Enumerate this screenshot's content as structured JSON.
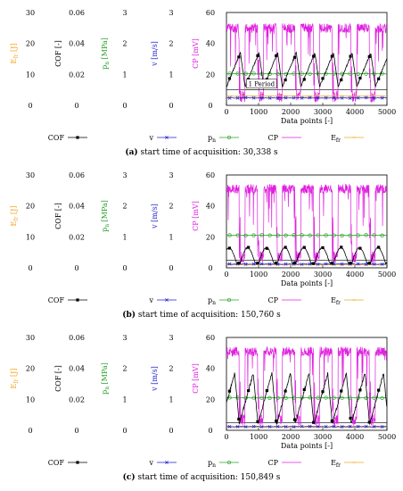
{
  "chart_data": [
    {
      "type": "line",
      "panel_tag": "a",
      "caption": "start time of acquisition: 30,338 s",
      "xlabel": "Data points [-]",
      "xlim": [
        0,
        5000
      ],
      "x_ticks": [
        "0",
        "1000",
        "2000",
        "3000",
        "4000",
        "5000"
      ],
      "annotation": "1 Period",
      "axes": [
        {
          "name": "E_fr",
          "label": "E",
          "label_sub": "fr",
          "label_unit": " [J]",
          "color": "#f5a623",
          "ticks": [
            "30",
            "20",
            "10",
            "0"
          ],
          "ylim": [
            0,
            30
          ]
        },
        {
          "name": "COF",
          "label": "COF [-]",
          "label_sub": "",
          "label_unit": "",
          "color": "#000000",
          "ticks": [
            "0.06",
            "0.04",
            "0.02",
            "0"
          ],
          "ylim": [
            0,
            0.06
          ]
        },
        {
          "name": "p_n",
          "label": "p",
          "label_sub": "n",
          "label_unit": " [MPa]",
          "color": "#2ca02c",
          "ticks": [
            "3",
            "2",
            "1",
            "0"
          ],
          "ylim": [
            0,
            3
          ]
        },
        {
          "name": "v",
          "label": "v [m/s]",
          "label_sub": "",
          "label_unit": "",
          "color": "#1f1fcf",
          "ticks": [
            "3",
            "2",
            "1",
            "0"
          ],
          "ylim": [
            0,
            3
          ]
        },
        {
          "name": "CP",
          "label": "CP [mV]",
          "label_sub": "",
          "label_unit": "",
          "color": "#e020e0",
          "ticks": [
            "60",
            "40",
            "20",
            "0"
          ],
          "ylim": [
            0,
            60
          ]
        }
      ],
      "series": [
        {
          "name": "COF",
          "color": "#000000",
          "marker": "filled-square",
          "shape": "sawtooth",
          "low": 0.012,
          "high": 0.034,
          "period": 580,
          "phase": 0
        },
        {
          "name": "v",
          "color": "#1f1fcf",
          "marker": "x",
          "shape": "flat",
          "value": 0.24
        },
        {
          "name": "p_n",
          "color": "#2ca02c",
          "marker": "open-circle",
          "shape": "flat",
          "value": 1.02
        },
        {
          "name": "CP",
          "color": "#e020e0",
          "marker": "none",
          "shape": "square-noisy",
          "low": 2,
          "high": 53,
          "period": 580,
          "phase": 0
        },
        {
          "name": "E_fr",
          "color": "#f5a623",
          "marker": "dash",
          "shape": "flat",
          "value": 3.0
        }
      ],
      "reference_lines": [
        {
          "axis": "CP",
          "value": 10
        }
      ]
    },
    {
      "type": "line",
      "panel_tag": "b",
      "caption": "start time of acquisition: 150,760 s",
      "xlabel": "Data points [-]",
      "xlim": [
        0,
        5000
      ],
      "x_ticks": [
        "0",
        "1000",
        "2000",
        "3000",
        "4000",
        "5000"
      ],
      "axes": [
        {
          "name": "E_fr",
          "label": "E",
          "label_sub": "fr",
          "label_unit": " [J]",
          "color": "#f5a623",
          "ticks": [
            "30",
            "20",
            "10",
            "0"
          ],
          "ylim": [
            0,
            30
          ]
        },
        {
          "name": "COF",
          "label": "COF [-]",
          "label_sub": "",
          "label_unit": "",
          "color": "#000000",
          "ticks": [
            "0.06",
            "0.04",
            "0.02",
            "0"
          ],
          "ylim": [
            0,
            0.06
          ]
        },
        {
          "name": "p_n",
          "label": "p",
          "label_sub": "n",
          "label_unit": " [MPa]",
          "color": "#2ca02c",
          "ticks": [
            "3",
            "2",
            "1",
            "0"
          ],
          "ylim": [
            0,
            3
          ]
        },
        {
          "name": "v",
          "label": "v [m/s]",
          "label_sub": "",
          "label_unit": "",
          "color": "#1f1fcf",
          "ticks": [
            "3",
            "2",
            "1",
            "0"
          ],
          "ylim": [
            0,
            3
          ]
        },
        {
          "name": "CP",
          "label": "CP [mV]",
          "label_sub": "",
          "label_unit": "",
          "color": "#e020e0",
          "ticks": [
            "60",
            "40",
            "20",
            "0"
          ],
          "ylim": [
            0,
            60
          ]
        }
      ],
      "series": [
        {
          "name": "COF",
          "color": "#000000",
          "marker": "filled-square",
          "shape": "hump",
          "low": 0.003,
          "high": 0.013,
          "period": 580,
          "phase": 150
        },
        {
          "name": "v",
          "color": "#1f1fcf",
          "marker": "x",
          "shape": "flat",
          "value": 0.12
        },
        {
          "name": "p_n",
          "color": "#2ca02c",
          "marker": "open-circle",
          "shape": "flat",
          "value": 1.05
        },
        {
          "name": "CP",
          "color": "#e020e0",
          "marker": "none",
          "shape": "square-noisy",
          "low": 3,
          "high": 54,
          "period": 580,
          "phase": 0
        },
        {
          "name": "E_fr",
          "color": "#f5a623",
          "marker": "dash",
          "shape": "flat",
          "value": 1.0
        }
      ],
      "reference_lines": [
        {
          "axis": "CP",
          "value": 5
        }
      ]
    },
    {
      "type": "line",
      "panel_tag": "c",
      "caption": "start time of acquisition: 150,849 s",
      "xlabel": "Data points [-]",
      "xlim": [
        0,
        5000
      ],
      "x_ticks": [
        "0",
        "1000",
        "2000",
        "3000",
        "4000",
        "5000"
      ],
      "axes": [
        {
          "name": "E_fr",
          "label": "E",
          "label_sub": "fr",
          "label_unit": " [J]",
          "color": "#f5a623",
          "ticks": [
            "30",
            "20",
            "10",
            "0"
          ],
          "ylim": [
            0,
            30
          ]
        },
        {
          "name": "COF",
          "label": "COF [-]",
          "label_sub": "",
          "label_unit": "",
          "color": "#000000",
          "ticks": [
            "0.06",
            "0.04",
            "0.02",
            "0"
          ],
          "ylim": [
            0,
            0.06
          ]
        },
        {
          "name": "p_n",
          "label": "p",
          "label_sub": "n",
          "label_unit": " [MPa]",
          "color": "#2ca02c",
          "ticks": [
            "3",
            "2",
            "1",
            "0"
          ],
          "ylim": [
            0,
            3
          ]
        },
        {
          "name": "v",
          "label": "v [m/s]",
          "label_sub": "",
          "label_unit": "",
          "color": "#1f1fcf",
          "ticks": [
            "3",
            "2",
            "1",
            "0"
          ],
          "ylim": [
            0,
            3
          ]
        },
        {
          "name": "CP",
          "label": "CP [mV]",
          "label_sub": "",
          "label_unit": "",
          "color": "#e020e0",
          "ticks": [
            "60",
            "40",
            "20",
            "0"
          ],
          "ylim": [
            0,
            60
          ]
        }
      ],
      "series": [
        {
          "name": "COF",
          "color": "#000000",
          "marker": "filled-square",
          "shape": "sawtooth",
          "low": 0.004,
          "high": 0.037,
          "period": 580,
          "phase": 180
        },
        {
          "name": "v",
          "color": "#1f1fcf",
          "marker": "x",
          "shape": "flat",
          "value": 0.12
        },
        {
          "name": "p_n",
          "color": "#2ca02c",
          "marker": "open-circle",
          "shape": "flat",
          "value": 1.05
        },
        {
          "name": "CP",
          "color": "#e020e0",
          "marker": "none",
          "shape": "square-noisy",
          "low": 3,
          "high": 54,
          "period": 580,
          "phase": 0
        },
        {
          "name": "E_fr",
          "color": "#f5a623",
          "marker": "dash",
          "shape": "flat",
          "value": 1.0
        }
      ],
      "reference_lines": [
        {
          "axis": "CP",
          "value": 5
        }
      ]
    }
  ],
  "legend": [
    {
      "name": "COF",
      "label": "COF",
      "sub": "",
      "color": "#000000",
      "marker": "filled-square"
    },
    {
      "name": "v",
      "label": "v",
      "sub": "",
      "color": "#1f1fcf",
      "marker": "x"
    },
    {
      "name": "p_n",
      "label": "p",
      "sub": "n",
      "color": "#2ca02c",
      "marker": "open-circle"
    },
    {
      "name": "CP",
      "label": "CP",
      "sub": "",
      "color": "#e020e0",
      "marker": "none"
    },
    {
      "name": "E_fr",
      "label": "E",
      "sub": "fr",
      "color": "#f5a623",
      "marker": "dash"
    }
  ]
}
